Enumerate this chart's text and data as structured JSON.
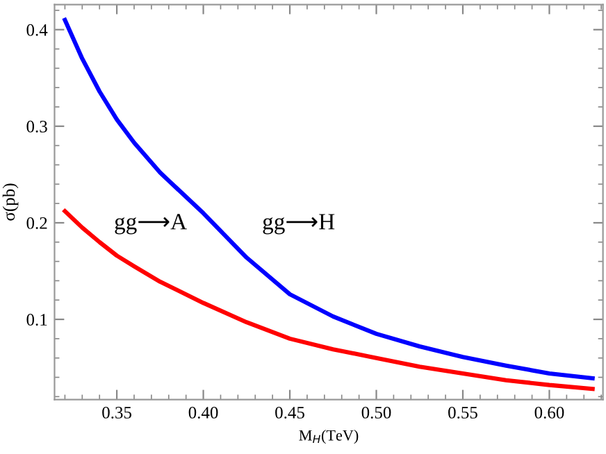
{
  "chart_data": {
    "type": "line",
    "xlabel": "M$_{H}$(TeV)",
    "ylabel": "σ(pb)",
    "xlim": [
      0.314,
      0.631
    ],
    "ylim": [
      0.017,
      0.426
    ],
    "xticks": [
      {
        "value": 0.35,
        "label": "0.35"
      },
      {
        "value": 0.4,
        "label": "0.40"
      },
      {
        "value": 0.45,
        "label": "0.45"
      },
      {
        "value": 0.5,
        "label": "0.50"
      },
      {
        "value": 0.55,
        "label": "0.55"
      },
      {
        "value": 0.6,
        "label": "0.60"
      }
    ],
    "yticks": [
      0.1,
      0.2,
      0.3,
      0.4
    ],
    "grid": false,
    "legend": false,
    "marker": "none",
    "line_style": "solid",
    "x": [
      0.32,
      0.33,
      0.34,
      0.35,
      0.36,
      0.375,
      0.4,
      0.425,
      0.45,
      0.475,
      0.5,
      0.525,
      0.55,
      0.575,
      0.6,
      0.625
    ],
    "series": [
      {
        "color": "#0000ff",
        "values": [
          0.41,
          0.37,
          0.336,
          0.307,
          0.283,
          0.252,
          0.21,
          0.164,
          0.126,
          0.103,
          0.085,
          0.072,
          0.061,
          0.052,
          0.044,
          0.039
        ]
      },
      {
        "color": "#ff0000",
        "values": [
          0.212,
          0.195,
          0.18,
          0.166,
          0.155,
          0.139,
          0.117,
          0.097,
          0.08,
          0.069,
          0.06,
          0.051,
          0.044,
          0.037,
          0.032,
          0.028
        ]
      }
    ],
    "annotations": [
      "gg⟶A",
      "gg⟶H"
    ]
  }
}
